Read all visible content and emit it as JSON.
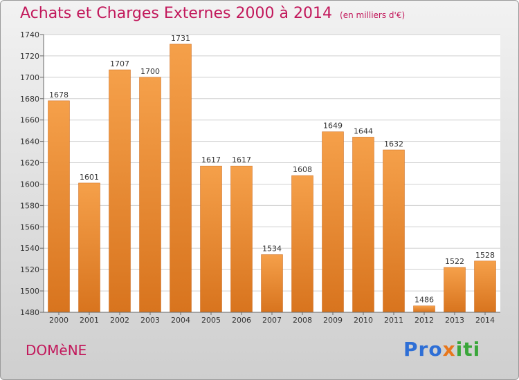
{
  "title": "Achats et Charges Externes 2000 à 2014",
  "subtitle": "(en milliers d'€)",
  "place_name": "DOMèNE",
  "logo": {
    "part1": "Pro",
    "part2": "x",
    "part3": "iti"
  },
  "colors": {
    "title": "#c2185b",
    "bar_top": "#f5a04a",
    "bar_bottom": "#d8741e"
  },
  "chart_data": {
    "type": "bar",
    "categories": [
      "2000",
      "2001",
      "2002",
      "2003",
      "2004",
      "2005",
      "2006",
      "2007",
      "2008",
      "2009",
      "2010",
      "2011",
      "2012",
      "2013",
      "2014"
    ],
    "values": [
      1678,
      1601,
      1707,
      1700,
      1731,
      1617,
      1617,
      1534,
      1608,
      1649,
      1644,
      1632,
      1486,
      1522,
      1528
    ],
    "ylim": [
      1480,
      1740
    ],
    "yticks": [
      1480,
      1500,
      1520,
      1540,
      1560,
      1580,
      1600,
      1620,
      1640,
      1660,
      1680,
      1700,
      1720,
      1740
    ],
    "grid": true,
    "data_labels": true
  }
}
